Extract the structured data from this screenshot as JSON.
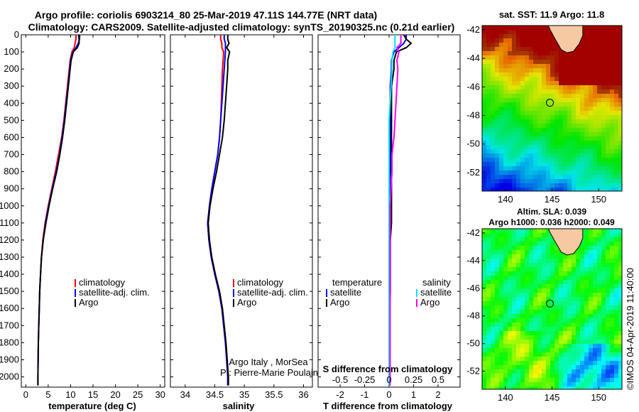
{
  "header": {
    "line1": "Argo profile: coriolis 6903214_80 25-Mar-2019 47.11S 144.77E (NRT data)",
    "line2": "Climatology: CARS2009. Satellite-adjusted climatology: synTS_20190325.nc (0.21d earlier)"
  },
  "credits": {
    "line1": "Argo Italy , MorSea",
    "line2": "PI: Pierre-Marie Poulain"
  },
  "map_panels": {
    "top_title": "sat. SST: 11.9 Argo: 11.8",
    "bottom_title1": "Altim. SLA: 0.039",
    "bottom_title2": "Argo h1000: 0.036 h2000: 0.049",
    "imos_stamp": "©IMOS 04-Apr-2019 11:40:00",
    "lon_ticks": [
      "140",
      "145",
      "150"
    ],
    "lat_ticks": [
      "-42",
      "-44",
      "-46",
      "-48",
      "-50",
      "-52"
    ],
    "argo_position": {
      "lon": 144.77,
      "lat": -47.11
    },
    "lon_range": [
      137.5,
      152.5
    ],
    "lat_range": [
      -53.3,
      -41.7
    ]
  },
  "colors": {
    "red": "#ff0000",
    "blue": "#0000ff",
    "black": "#000000",
    "cyan": "#00e5ff",
    "magenta": "#ff00ff"
  },
  "chart_data": [
    {
      "type": "line",
      "name": "temperature",
      "xlabel": "temperature (deg C)",
      "xlim": [
        -1,
        31
      ],
      "xticks": [
        0,
        5,
        10,
        15,
        20,
        25,
        30
      ],
      "ylim": [
        2060,
        0
      ],
      "yticks": [
        0,
        100,
        200,
        300,
        400,
        500,
        600,
        700,
        800,
        900,
        1000,
        1100,
        1200,
        1300,
        1400,
        1500,
        1600,
        1700,
        1800,
        1900,
        2000
      ],
      "depth": [
        0,
        25,
        50,
        75,
        100,
        150,
        200,
        300,
        400,
        500,
        600,
        700,
        800,
        900,
        1000,
        1100,
        1200,
        1300,
        1400,
        1500,
        1600,
        1700,
        1800,
        1900,
        2000,
        2050
      ],
      "series": [
        {
          "name": "climatology",
          "color": "#ff0000",
          "values": [
            11.2,
            11.2,
            11.0,
            10.8,
            10.3,
            9.9,
            9.7,
            9.3,
            8.9,
            8.5,
            8.0,
            7.3,
            6.6,
            5.8,
            5.0,
            4.3,
            3.8,
            3.5,
            3.3,
            3.1,
            3.0,
            2.9,
            2.8,
            2.75,
            2.7,
            2.7
          ]
        },
        {
          "name": "satellite-adj. clim.",
          "color": "#0000ff",
          "values": [
            12.0,
            12.0,
            11.7,
            11.2,
            10.5,
            10.0,
            9.8,
            9.4,
            9.0,
            8.6,
            8.1,
            7.5,
            6.8,
            5.9,
            5.1,
            4.4,
            3.9,
            3.5,
            3.3,
            3.1,
            3.0,
            2.9,
            2.8,
            2.75,
            2.7,
            2.7
          ]
        },
        {
          "name": "Argo",
          "color": "#000000",
          "values": [
            11.8,
            11.9,
            11.9,
            11.5,
            10.6,
            10.1,
            9.9,
            9.5,
            9.1,
            8.7,
            8.2,
            7.6,
            6.9,
            6.0,
            5.2,
            4.5,
            3.9,
            3.5,
            3.3,
            3.1,
            3.0,
            2.9,
            2.8,
            2.75,
            2.7,
            2.7
          ]
        }
      ],
      "legend": [
        "climatology",
        "satellite-adj. clim.",
        "Argo"
      ]
    },
    {
      "type": "line",
      "name": "salinity",
      "xlabel": "salinity",
      "xlim": [
        33.75,
        36.15
      ],
      "xticks": [
        34,
        34.5,
        35,
        35.5,
        36
      ],
      "xticklabels": [
        "34",
        "34.5",
        "35",
        "35.5",
        "36"
      ],
      "ylim": [
        2060,
        0
      ],
      "depth": [
        0,
        25,
        50,
        75,
        100,
        150,
        200,
        300,
        400,
        500,
        600,
        700,
        800,
        900,
        1000,
        1100,
        1200,
        1300,
        1400,
        1500,
        1600,
        1700,
        1800,
        1900,
        2000,
        2050
      ],
      "series": [
        {
          "name": "climatology",
          "color": "#ff0000",
          "values": [
            34.6,
            34.6,
            34.62,
            34.62,
            34.65,
            34.64,
            34.63,
            34.62,
            34.61,
            34.6,
            34.58,
            34.55,
            34.5,
            34.45,
            34.41,
            34.38,
            34.4,
            34.44,
            34.5,
            34.57,
            34.62,
            34.65,
            34.68,
            34.7,
            34.72,
            34.72
          ]
        },
        {
          "name": "satellite-adj. clim.",
          "color": "#0000ff",
          "values": [
            34.66,
            34.66,
            34.68,
            34.68,
            34.68,
            34.67,
            34.66,
            34.64,
            34.62,
            34.6,
            34.58,
            34.55,
            34.5,
            34.45,
            34.41,
            34.38,
            34.4,
            34.44,
            34.5,
            34.57,
            34.62,
            34.65,
            34.68,
            34.7,
            34.72,
            34.72
          ]
        },
        {
          "name": "Argo",
          "color": "#000000",
          "values": [
            34.72,
            34.72,
            34.74,
            34.7,
            34.75,
            34.72,
            34.72,
            34.7,
            34.68,
            34.66,
            34.63,
            34.58,
            34.53,
            34.47,
            34.42,
            34.39,
            34.41,
            34.45,
            34.51,
            34.58,
            34.63,
            34.66,
            34.69,
            34.71,
            34.73,
            34.73
          ]
        }
      ],
      "legend": [
        "climatology",
        "satellite-adj. clim.",
        "Argo"
      ]
    },
    {
      "type": "line",
      "name": "differences",
      "xlabel": "T difference from climatology",
      "xlabel_top": "S difference from climatology",
      "xlim": [
        -2.9,
        2.9
      ],
      "xticks": [
        -2,
        -1,
        0,
        1,
        2
      ],
      "xticks_s": [
        -0.5,
        -0.25,
        0,
        0.25,
        0.5
      ],
      "xticklabels_s": [
        "-0.5",
        "-0.25",
        "0",
        "0.25",
        "0.5"
      ],
      "s_scale": 4,
      "ylim": [
        2060,
        0
      ],
      "depth": [
        0,
        25,
        50,
        75,
        100,
        150,
        200,
        300,
        400,
        500,
        600,
        700,
        800,
        900,
        1000,
        1100,
        1200,
        1300,
        1400,
        1500,
        1600,
        1700,
        1800,
        1900,
        2000,
        2050
      ],
      "series": [
        {
          "name": "temperature satellite",
          "color": "#0000ff",
          "values": [
            0.7,
            0.7,
            0.6,
            0.4,
            0.2,
            0.1,
            0.1,
            0.05,
            0.05,
            0.05,
            0.05,
            0.05,
            0.04,
            0.03,
            0.03,
            0.02,
            0.02,
            0.01,
            0.01,
            0.01,
            0.01,
            0.0,
            0.0,
            0.0,
            0.0,
            0.0
          ]
        },
        {
          "name": "temperature Argo",
          "color": "#000000",
          "values": [
            0.6,
            0.7,
            0.9,
            0.7,
            0.3,
            0.2,
            0.2,
            0.1,
            0.1,
            0.1,
            0.1,
            0.1,
            0.1,
            0.1,
            0.1,
            0.1,
            0.05,
            0.05,
            0.05,
            0.05,
            0.03,
            0.03,
            0.02,
            0.02,
            0.01,
            0.01
          ]
        },
        {
          "name": "salinity satellite",
          "color": "#00e5ff",
          "values": [
            0.06,
            0.06,
            0.06,
            0.06,
            0.04,
            0.03,
            0.03,
            0.02,
            0.01,
            0.0,
            0.0,
            0.0,
            0.0,
            0.0,
            0.0,
            0.0,
            0.0,
            0.0,
            0.0,
            0.0,
            0.0,
            0.0,
            0.0,
            0.0,
            0.0,
            0.0
          ]
        },
        {
          "name": "salinity Argo",
          "color": "#ff00ff",
          "values": [
            0.12,
            0.12,
            0.12,
            0.08,
            0.1,
            0.08,
            0.09,
            0.08,
            0.07,
            0.06,
            0.05,
            0.03,
            0.03,
            0.02,
            0.01,
            0.01,
            0.01,
            0.01,
            0.01,
            0.01,
            0.01,
            0.01,
            0.01,
            0.01,
            0.01,
            0.01
          ]
        }
      ],
      "legend_temperature_title": "temperature",
      "legend_temperature": [
        "satellite",
        "Argo"
      ],
      "legend_salinity_title": "salinity",
      "legend_salinity": [
        "satellite",
        "Argo"
      ]
    }
  ]
}
